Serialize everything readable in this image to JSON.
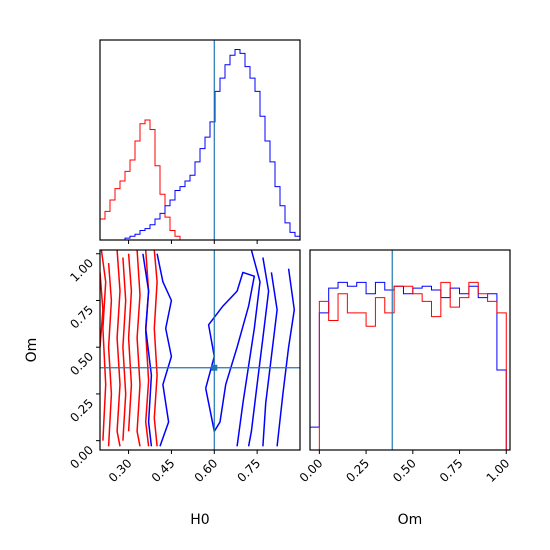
{
  "chart_data": [
    {
      "type": "histogram",
      "panel": "H0 marginal",
      "x_range": [
        0.2,
        0.9
      ],
      "truth_x": 0.6,
      "grid": false,
      "series": [
        {
          "color": "#ff0000",
          "bin_edges": [
            0.2,
            0.2175,
            0.235,
            0.2525,
            0.27,
            0.2875,
            0.305,
            0.3225,
            0.34,
            0.3575,
            0.375,
            0.3925,
            0.41,
            0.4275,
            0.445,
            0.4625,
            0.48
          ],
          "values": [
            0.11,
            0.15,
            0.21,
            0.27,
            0.31,
            0.36,
            0.42,
            0.52,
            0.61,
            0.63,
            0.58,
            0.39,
            0.24,
            0.12,
            0.05,
            0.02
          ]
        },
        {
          "color": "#0000ff",
          "bin_edges": [
            0.2,
            0.2175,
            0.235,
            0.2525,
            0.27,
            0.2875,
            0.305,
            0.3225,
            0.34,
            0.3575,
            0.375,
            0.3925,
            0.41,
            0.4275,
            0.445,
            0.4625,
            0.48,
            0.4975,
            0.515,
            0.5325,
            0.55,
            0.5675,
            0.585,
            0.6025,
            0.62,
            0.6375,
            0.655,
            0.6725,
            0.69,
            0.7075,
            0.725,
            0.7425,
            0.76,
            0.7775,
            0.795,
            0.8125,
            0.83,
            0.8475,
            0.865,
            0.8825,
            0.9
          ],
          "values": [
            0,
            0,
            0,
            0,
            0,
            0.01,
            0.02,
            0.03,
            0.05,
            0.06,
            0.08,
            0.11,
            0.14,
            0.18,
            0.21,
            0.26,
            0.28,
            0.31,
            0.34,
            0.41,
            0.48,
            0.54,
            0.62,
            0.78,
            0.85,
            0.92,
            0.97,
            1.0,
            0.98,
            0.91,
            0.85,
            0.78,
            0.65,
            0.52,
            0.41,
            0.28,
            0.18,
            0.09,
            0.04,
            0.02
          ]
        }
      ]
    },
    {
      "type": "contour",
      "panel": "H0 vs Om",
      "xlabel": "H0",
      "ylabel": "Om",
      "x_range": [
        0.2,
        0.9
      ],
      "y_range": [
        -0.05,
        1.02
      ],
      "x_ticks": [
        "0.30",
        "0.45",
        "0.60",
        "0.75"
      ],
      "y_ticks": [
        "0.00",
        "0.25",
        "0.50",
        "0.75",
        "1.00"
      ],
      "truth_point": [
        0.6,
        0.39
      ],
      "grid": false,
      "series": [
        {
          "color": "#ff0000",
          "contours": [
            [
              [
                0.2,
                0.9
              ],
              [
                0.21,
                0.7
              ],
              [
                0.2,
                0.5
              ]
            ],
            [
              [
                0.205,
                1.02
              ],
              [
                0.22,
                0.85
              ],
              [
                0.21,
                0.6
              ],
              [
                0.22,
                0.3
              ],
              [
                0.21,
                0.0
              ]
            ],
            [
              [
                0.23,
                0.95
              ],
              [
                0.24,
                0.75
              ],
              [
                0.23,
                0.5
              ],
              [
                0.24,
                0.25
              ],
              [
                0.23,
                -0.03
              ]
            ],
            [
              [
                0.26,
                1.02
              ],
              [
                0.27,
                0.8
              ],
              [
                0.26,
                0.55
              ],
              [
                0.27,
                0.3
              ],
              [
                0.26,
                0.05
              ],
              [
                0.27,
                -0.03
              ]
            ],
            [
              [
                0.28,
                0.98
              ],
              [
                0.29,
                0.75
              ],
              [
                0.28,
                0.5
              ],
              [
                0.29,
                0.25
              ],
              [
                0.28,
                0.0
              ]
            ],
            [
              [
                0.3,
                1.0
              ],
              [
                0.31,
                0.8
              ],
              [
                0.3,
                0.55
              ],
              [
                0.31,
                0.3
              ],
              [
                0.3,
                0.05
              ]
            ],
            [
              [
                0.33,
                1.02
              ],
              [
                0.34,
                0.78
              ],
              [
                0.33,
                0.55
              ],
              [
                0.34,
                0.3
              ],
              [
                0.33,
                0.05
              ],
              [
                0.34,
                -0.03
              ]
            ],
            [
              [
                0.36,
                1.02
              ],
              [
                0.37,
                0.8
              ],
              [
                0.36,
                0.58
              ],
              [
                0.37,
                0.32
              ],
              [
                0.36,
                0.1
              ],
              [
                0.37,
                -0.03
              ]
            ],
            [
              [
                0.39,
                1.02
              ],
              [
                0.4,
                0.85
              ],
              [
                0.39,
                0.6
              ],
              [
                0.4,
                0.35
              ],
              [
                0.39,
                0.12
              ],
              [
                0.4,
                -0.03
              ]
            ]
          ]
        },
        {
          "color": "#0000ff",
          "contours": [
            [
              [
                0.35,
                1.0
              ],
              [
                0.37,
                0.8
              ],
              [
                0.36,
                0.6
              ],
              [
                0.38,
                0.35
              ],
              [
                0.37,
                0.1
              ],
              [
                0.38,
                -0.03
              ]
            ],
            [
              [
                0.4,
                1.0
              ],
              [
                0.42,
                0.85
              ],
              [
                0.45,
                0.75
              ],
              [
                0.43,
                0.6
              ],
              [
                0.45,
                0.45
              ],
              [
                0.42,
                0.3
              ],
              [
                0.44,
                0.1
              ],
              [
                0.41,
                -0.03
              ]
            ],
            [
              [
                0.57,
                0.28
              ],
              [
                0.6,
                0.45
              ],
              [
                0.58,
                0.62
              ],
              [
                0.63,
                0.72
              ],
              [
                0.68,
                0.8
              ],
              [
                0.7,
                0.9
              ],
              [
                0.74,
                0.88
              ],
              [
                0.72,
                0.72
              ],
              [
                0.68,
                0.5
              ],
              [
                0.64,
                0.3
              ],
              [
                0.62,
                0.1
              ],
              [
                0.6,
                0.05
              ],
              [
                0.57,
                0.28
              ]
            ],
            [
              [
                0.73,
                1.02
              ],
              [
                0.76,
                0.85
              ],
              [
                0.74,
                0.6
              ],
              [
                0.72,
                0.4
              ],
              [
                0.7,
                0.2
              ],
              [
                0.68,
                -0.03
              ]
            ],
            [
              [
                0.77,
                0.98
              ],
              [
                0.79,
                0.8
              ],
              [
                0.77,
                0.55
              ],
              [
                0.75,
                0.3
              ],
              [
                0.73,
                0.05
              ],
              [
                0.72,
                -0.03
              ]
            ],
            [
              [
                0.8,
                0.9
              ],
              [
                0.82,
                0.7
              ],
              [
                0.8,
                0.45
              ],
              [
                0.78,
                0.2
              ],
              [
                0.77,
                -0.03
              ]
            ],
            [
              [
                0.86,
                0.92
              ],
              [
                0.88,
                0.7
              ],
              [
                0.86,
                0.5
              ],
              [
                0.84,
                0.25
              ],
              [
                0.82,
                -0.03
              ]
            ]
          ]
        }
      ]
    },
    {
      "type": "histogram",
      "panel": "Om marginal",
      "xlabel": "Om",
      "x_range": [
        -0.05,
        1.02
      ],
      "x_ticks": [
        "0.00",
        "0.25",
        "0.50",
        "0.75",
        "1.00"
      ],
      "truth_x": 0.39,
      "grid": false,
      "series": [
        {
          "color": "#0000ff",
          "bin_edges": [
            -0.05,
            0.0,
            0.05,
            0.1,
            0.15,
            0.2,
            0.25,
            0.3,
            0.35,
            0.4,
            0.45,
            0.5,
            0.55,
            0.6,
            0.65,
            0.7,
            0.75,
            0.8,
            0.85,
            0.9,
            0.95,
            1.0
          ],
          "values": [
            0.12,
            0.72,
            0.85,
            0.88,
            0.86,
            0.88,
            0.82,
            0.88,
            0.84,
            0.86,
            0.82,
            0.85,
            0.86,
            0.84,
            0.8,
            0.85,
            0.82,
            0.86,
            0.8,
            0.82,
            0.42
          ]
        },
        {
          "color": "#ff0000",
          "bin_edges": [
            0.0,
            0.05,
            0.1,
            0.15,
            0.2,
            0.25,
            0.3,
            0.35,
            0.4,
            0.45,
            0.5,
            0.55,
            0.6,
            0.65,
            0.7,
            0.75,
            0.8,
            0.85,
            0.9,
            0.95,
            1.0
          ],
          "values": [
            0.78,
            0.68,
            0.82,
            0.72,
            0.72,
            0.65,
            0.8,
            0.72,
            0.86,
            0.86,
            0.82,
            0.78,
            0.7,
            0.88,
            0.75,
            0.8,
            0.88,
            0.82,
            0.78,
            0.72
          ]
        }
      ]
    }
  ]
}
